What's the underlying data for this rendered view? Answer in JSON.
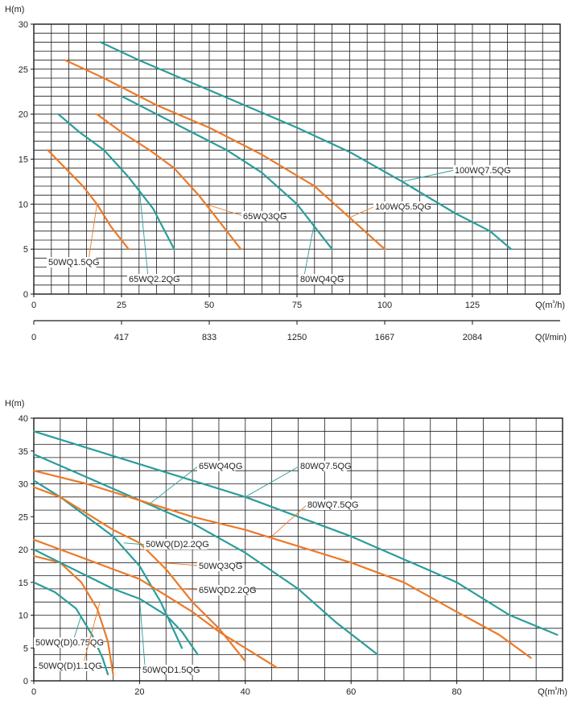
{
  "colors": {
    "teal": "#2a9d9a",
    "orange": "#ec7a28",
    "grid": "#1a1a1a"
  },
  "chart_data": [
    {
      "type": "line",
      "ylabel": "H(m)",
      "xlabel": "Q(m³/h)",
      "xlabel2": "Q(l/min)",
      "xlim": [
        0,
        150
      ],
      "ylim": [
        0,
        30
      ],
      "xticks": [
        0,
        25,
        50,
        75,
        100,
        125
      ],
      "yticks": [
        0,
        5,
        10,
        15,
        20,
        25,
        30
      ],
      "xticks2": [
        {
          "q": 0,
          "label": "0"
        },
        {
          "q": 25,
          "label": "417"
        },
        {
          "q": 50,
          "label": "833"
        },
        {
          "q": 75,
          "label": "1250"
        },
        {
          "q": 100,
          "label": "1667"
        },
        {
          "q": 125,
          "label": "2084"
        }
      ],
      "series": [
        {
          "name": "50WQ1.5QG",
          "color": "orange",
          "points": [
            [
              4,
              16
            ],
            [
              9,
              14
            ],
            [
              14,
              12
            ],
            [
              18,
              10
            ],
            [
              22,
              7.5
            ],
            [
              27,
              5
            ]
          ]
        },
        {
          "name": "65WQ2.2QG",
          "color": "teal",
          "points": [
            [
              7,
              20
            ],
            [
              13,
              18
            ],
            [
              20,
              16
            ],
            [
              27,
              13
            ],
            [
              34,
              9.5
            ],
            [
              40,
              5
            ]
          ]
        },
        {
          "name": "65WQ3QG",
          "color": "orange",
          "points": [
            [
              18,
              20
            ],
            [
              25,
              18
            ],
            [
              33,
              16
            ],
            [
              40,
              14
            ],
            [
              47,
              11
            ],
            [
              53,
              8
            ],
            [
              59,
              5
            ]
          ]
        },
        {
          "name": "80WQ4QG",
          "color": "teal",
          "points": [
            [
              25,
              22
            ],
            [
              35,
              20
            ],
            [
              45,
              18
            ],
            [
              55,
              16
            ],
            [
              65,
              13.5
            ],
            [
              75,
              10
            ],
            [
              80,
              7.5
            ],
            [
              85,
              5
            ]
          ]
        },
        {
          "name": "100WQ5.5QG",
          "color": "orange",
          "points": [
            [
              9,
              26
            ],
            [
              20,
              24
            ],
            [
              35,
              21
            ],
            [
              50,
              18.5
            ],
            [
              65,
              15.5
            ],
            [
              80,
              12
            ],
            [
              90,
              8.5
            ],
            [
              100,
              5
            ]
          ]
        },
        {
          "name": "100WQ7.5QG",
          "color": "teal",
          "points": [
            [
              19,
              28
            ],
            [
              30,
              26
            ],
            [
              45,
              23.5
            ],
            [
              60,
              21
            ],
            [
              75,
              18.5
            ],
            [
              90,
              15.8
            ],
            [
              105,
              12.5
            ],
            [
              120,
              9
            ],
            [
              130,
              7
            ],
            [
              136,
              5
            ]
          ]
        }
      ],
      "labels": [
        {
          "series": "50WQ1.5QG",
          "text": "50WQ1.5QG"
        },
        {
          "series": "65WQ2.2QG",
          "text": "65WQ2.2QG"
        },
        {
          "series": "65WQ3QG",
          "text": "65WQ3QG"
        },
        {
          "series": "80WQ4QG",
          "text": "80WQ4QG"
        },
        {
          "series": "100WQ5.5QG",
          "text": "100WQ5.5QG"
        },
        {
          "series": "100WQ7.5QG",
          "text": "100WQ7.5QG"
        }
      ]
    },
    {
      "type": "line",
      "ylabel": "H(m)",
      "xlabel": "Q(m³/h)",
      "xlim": [
        0,
        100
      ],
      "ylim": [
        0,
        40
      ],
      "xticks": [
        0,
        20,
        40,
        60,
        80
      ],
      "yticks": [
        0,
        5,
        10,
        15,
        20,
        25,
        30,
        35,
        40
      ],
      "series": [
        {
          "name": "50WQ(D)0.75QG",
          "color": "teal",
          "points": [
            [
              0,
              15
            ],
            [
              4,
              13.5
            ],
            [
              8,
              11
            ],
            [
              11,
              7
            ],
            [
              13,
              3.5
            ],
            [
              14,
              1
            ]
          ]
        },
        {
          "name": "50WQ(D)1.1QG",
          "color": "orange",
          "points": [
            [
              0,
              19
            ],
            [
              5,
              18
            ],
            [
              9,
              15
            ],
            [
              12,
              11
            ],
            [
              14,
              6
            ],
            [
              15,
              1
            ]
          ]
        },
        {
          "name": "50WQD1.5QG",
          "color": "teal",
          "points": [
            [
              0,
              20
            ],
            [
              5,
              18
            ],
            [
              10,
              16
            ],
            [
              15,
              14
            ],
            [
              20,
              12.5
            ],
            [
              25,
              10
            ],
            [
              28,
              7.5
            ],
            [
              31,
              4
            ]
          ]
        },
        {
          "name": "50WQ(D)2.2QG",
          "color": "teal",
          "points": [
            [
              0,
              30.5
            ],
            [
              5,
              28
            ],
            [
              10,
              25
            ],
            [
              15,
              22
            ],
            [
              20,
              17.5
            ],
            [
              24,
              12
            ],
            [
              28,
              5
            ]
          ]
        },
        {
          "name": "50WQ3QG",
          "color": "orange",
          "points": [
            [
              0,
              29.5
            ],
            [
              5,
              28
            ],
            [
              10,
              25.5
            ],
            [
              15,
              23
            ],
            [
              20,
              21
            ],
            [
              25,
              17
            ],
            [
              30,
              12
            ],
            [
              35,
              8
            ],
            [
              40,
              3
            ]
          ]
        },
        {
          "name": "65WQD2.2QG",
          "color": "orange",
          "points": [
            [
              0,
              21.5
            ],
            [
              5,
              20
            ],
            [
              10,
              18.5
            ],
            [
              15,
              17
            ],
            [
              20,
              15.5
            ],
            [
              25,
              13
            ],
            [
              30,
              10.5
            ],
            [
              35,
              7.5
            ],
            [
              40,
              5
            ],
            [
              46,
              2
            ]
          ]
        },
        {
          "name": "65WQ4QG",
          "color": "teal",
          "points": [
            [
              0,
              34.5
            ],
            [
              10,
              31
            ],
            [
              20,
              27.5
            ],
            [
              30,
              24
            ],
            [
              40,
              19.5
            ],
            [
              50,
              14
            ],
            [
              57,
              9
            ],
            [
              65,
              4
            ]
          ]
        },
        {
          "name": "80WQ7.5QG",
          "color": "orange",
          "points": [
            [
              0,
              32
            ],
            [
              10,
              30
            ],
            [
              20,
              27.5
            ],
            [
              30,
              25
            ],
            [
              40,
              23
            ],
            [
              50,
              20.5
            ],
            [
              60,
              18
            ],
            [
              70,
              15
            ],
            [
              80,
              10.5
            ],
            [
              88,
              7
            ],
            [
              94,
              3.5
            ]
          ]
        },
        {
          "name": "80WQ7.5QG",
          "color": "teal",
          "points": [
            [
              0,
              38
            ],
            [
              10,
              35.5
            ],
            [
              20,
              33
            ],
            [
              30,
              30.5
            ],
            [
              40,
              28
            ],
            [
              50,
              25
            ],
            [
              60,
              22
            ],
            [
              70,
              18.5
            ],
            [
              80,
              15
            ],
            [
              90,
              10
            ],
            [
              99,
              7
            ]
          ]
        }
      ],
      "labels": [
        {
          "text": "50WQ(D)0.75QG"
        },
        {
          "text": "50WQ(D)1.1QG"
        },
        {
          "text": "50WQD1.5QG"
        },
        {
          "text": "50WQ(D)2.2QG"
        },
        {
          "text": "50WQ3QG"
        },
        {
          "text": "65WQD2.2QG"
        },
        {
          "text": "65WQ4QG"
        },
        {
          "text": "80WQ7.5QG"
        },
        {
          "text": "80WQ7.5QG"
        }
      ]
    }
  ]
}
